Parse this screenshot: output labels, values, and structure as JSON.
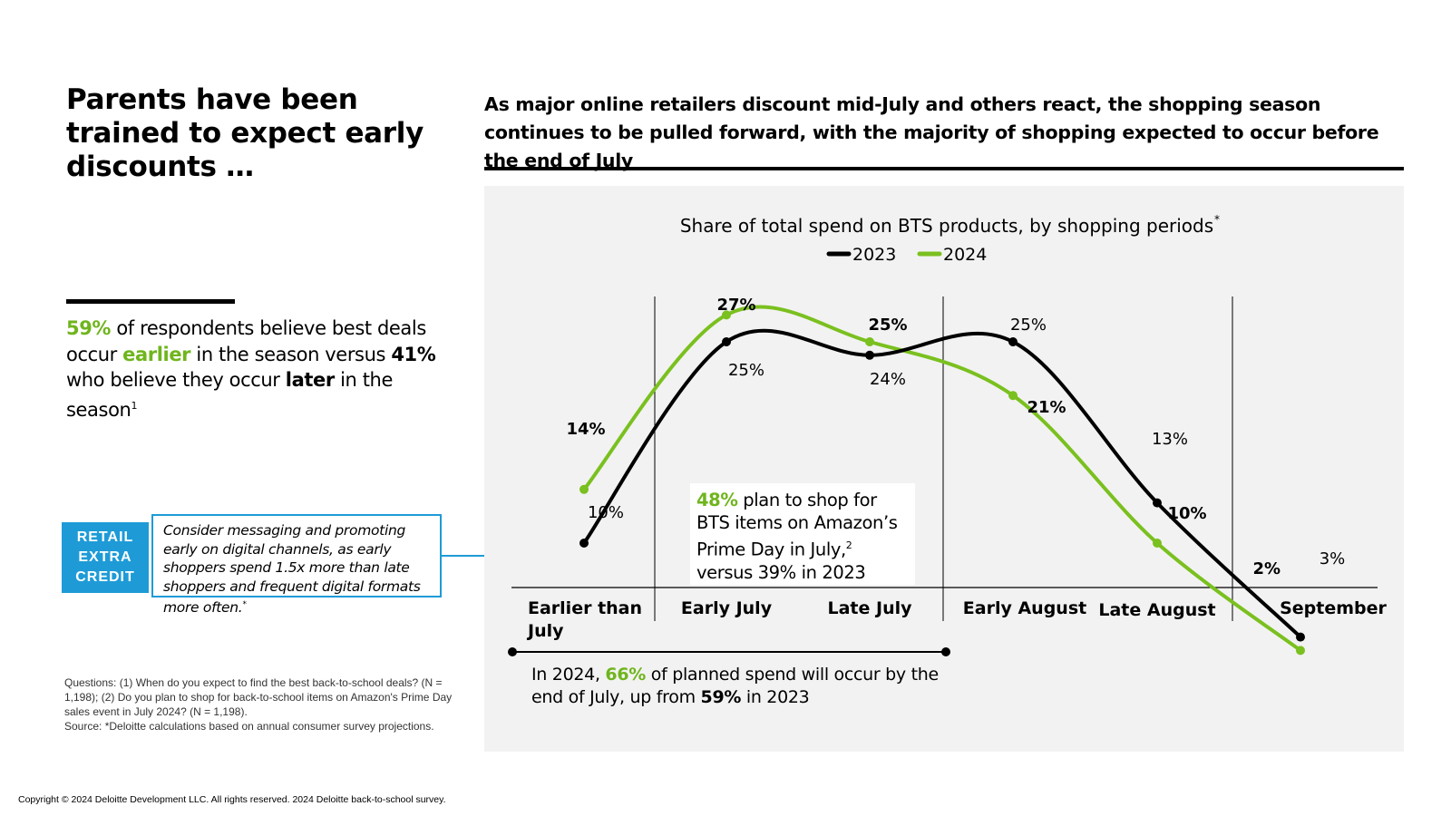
{
  "left": {
    "title": "Parents have been trained to expect early discounts …",
    "stat": {
      "pct_early": "59%",
      "text1": " of respondents believe best deals occur ",
      "earlier": "earlier",
      "text2": " in the season versus ",
      "pct_late": "41%",
      "text3": " who believe they occur ",
      "later": "later",
      "text4": " in the season",
      "footnote": "1"
    },
    "recommendation": {
      "tag_lines": [
        "RETAIL",
        "EXTRA",
        "CREDIT"
      ],
      "text": "Consider messaging and promoting early on digital channels, as early shoppers spend 1.5x more than late shoppers and frequent digital formats more often.",
      "mark": "*"
    },
    "notes": {
      "questions": "Questions: (1) When do you expect to find the best back-to-school deals? (N = 1,198); (2) Do you plan to shop for back-to-school items on Amazon's Prime Day sales event in July 2024? (N = 1,198).",
      "source": "Source: *Deloitte calculations based on annual consumer survey projections."
    }
  },
  "right": {
    "title": "As major online retailers discount mid-July and others react, the shopping season continues to be pulled forward, with the majority of shopping expected to occur before the end of July"
  },
  "callout": {
    "pct": "48%",
    "text1": " plan to shop for BTS items on Amazon’s Prime Day in July,",
    "footnote": "2",
    "text2": "versus 39% in 2023"
  },
  "bottom_note": {
    "text1": "In 2024, ",
    "pct_2024": "66%",
    "text2": " of planned spend will occur by the end of July, up from ",
    "pct_2023": "59%",
    "text3": " in 2023"
  },
  "colors": {
    "line_2023": "#000000",
    "line_2024": "#7ac01f",
    "accent_blue": "#1e9bd7",
    "panel_bg": "#f2f2f2"
  },
  "chart_data": {
    "type": "line",
    "title": "Share of total spend on BTS products, by shopping periods",
    "title_mark": "*",
    "categories": [
      "Earlier than July",
      "Early July",
      "Late July",
      "Early August",
      "Late August",
      "September"
    ],
    "category_lines": [
      [
        "Earlier than",
        "July"
      ],
      [
        "Early July"
      ],
      [
        "Late July"
      ],
      [
        "Early August"
      ],
      [
        "Late August"
      ],
      [
        "September"
      ]
    ],
    "series": [
      {
        "name": "2023",
        "values": [
          10,
          25,
          24,
          25,
          13,
          3
        ],
        "labels": [
          "10%",
          "25%",
          "24%",
          "25%",
          "13%",
          "3%"
        ]
      },
      {
        "name": "2024",
        "values": [
          14,
          27,
          25,
          21,
          10,
          2
        ],
        "labels": [
          "14%",
          "27%",
          "25%",
          "21%",
          "10%",
          "2%"
        ]
      }
    ],
    "ylim": [
      0,
      30
    ],
    "legend": "top-center",
    "grid": false
  },
  "copyright": "Copyright © 2024 Deloitte Development LLC. All rights reserved. 2024 Deloitte back-to-school survey."
}
